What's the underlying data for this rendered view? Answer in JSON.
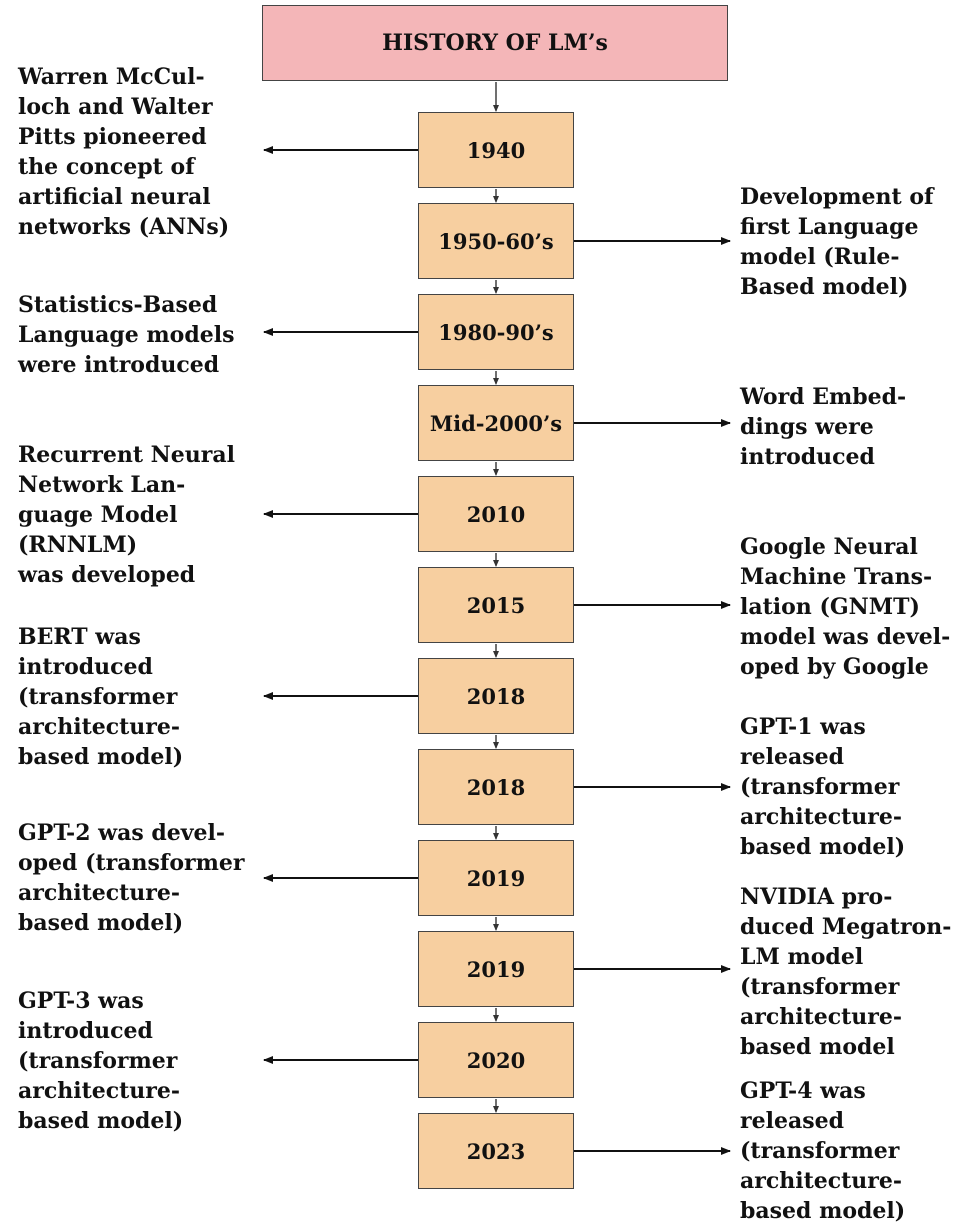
{
  "title": "HISTORY OF LM’s",
  "colors": {
    "title_fill": "#f4b6b8",
    "box_fill": "#f7cfa0",
    "stroke": "#444444"
  },
  "milestones": [
    {
      "year": "1940",
      "side": "left",
      "note": "Warren McCul-\nloch and Walter\nPitts pioneered\nthe concept of\nartificial neural\nnetworks (ANNs)"
    },
    {
      "year": "1950-60’s",
      "side": "right",
      "note": "Development of\nfirst Language\nmodel (Rule-\nBased model)"
    },
    {
      "year": "1980-90’s",
      "side": "left",
      "note": "Statistics-Based\nLanguage models\nwere introduced"
    },
    {
      "year": "Mid-2000’s",
      "side": "right",
      "note": "Word Embed-\ndings were\nintroduced"
    },
    {
      "year": "2010",
      "side": "left",
      "note": "Recurrent Neural\nNetwork Lan-\nguage Model\n(RNNLM)\nwas developed"
    },
    {
      "year": "2015",
      "side": "right",
      "note": "Google Neural\nMachine Trans-\nlation (GNMT)\nmodel was devel-\noped by Google"
    },
    {
      "year": "2018",
      "side": "left",
      "note": "BERT was\nintroduced\n(transformer\narchitecture-\nbased model)"
    },
    {
      "year": "2018",
      "side": "right",
      "note": "GPT-1 was\nreleased\n(transformer\narchitecture-\nbased model)"
    },
    {
      "year": "2019",
      "side": "left",
      "note": "GPT-2 was devel-\noped (transformer\narchitecture-\nbased model)"
    },
    {
      "year": "2019",
      "side": "right",
      "note": "NVIDIA pro-\nduced Megatron-\nLM model\n(transformer\narchitecture-\nbased model"
    },
    {
      "year": "2020",
      "side": "left",
      "note": "GPT-3 was\nintroduced\n(transformer\narchitecture-\nbased model)"
    },
    {
      "year": "2023",
      "side": "right",
      "note": "GPT-4 was\nreleased\n(transformer\narchitecture-\nbased model)"
    }
  ]
}
